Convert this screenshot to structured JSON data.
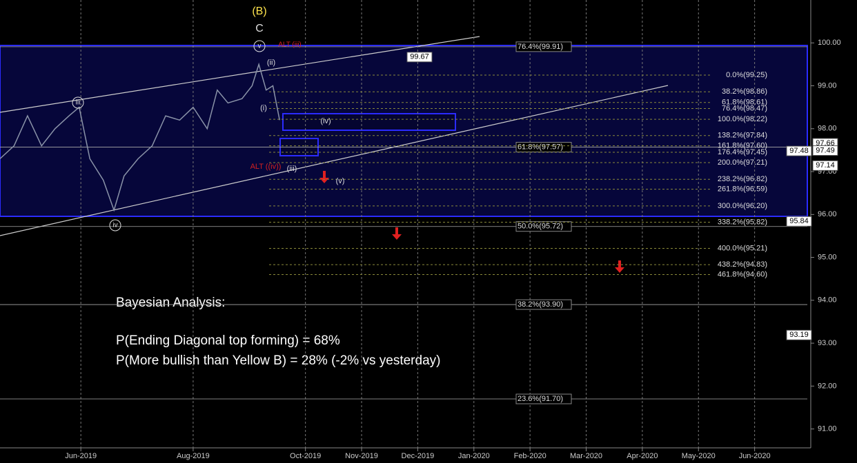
{
  "chart_data": {
    "type": "line",
    "color": "#8a93a8",
    "x": [
      4.56,
      4.81,
      5.05,
      5.3,
      5.54,
      5.79,
      5.97,
      6.16,
      6.4,
      6.59,
      6.77,
      7.02,
      7.27,
      7.51,
      7.76,
      8.0,
      8.25,
      8.43,
      8.62,
      8.87,
      9.05,
      9.17,
      9.3,
      9.42,
      9.54
    ],
    "values": [
      97.3,
      97.6,
      98.3,
      97.6,
      98.0,
      98.3,
      98.5,
      97.3,
      96.8,
      96.1,
      96.9,
      97.3,
      97.6,
      98.3,
      98.2,
      98.5,
      98.0,
      98.9,
      98.6,
      98.7,
      99.0,
      99.5,
      98.9,
      99.0,
      98.2
    ],
    "xlim": [
      4.56,
      19.0
    ],
    "xticks": [
      {
        "value": 6,
        "label": "Jun-2019"
      },
      {
        "value": 8,
        "label": "Aug-2019"
      },
      {
        "value": 10,
        "label": "Oct-2019"
      },
      {
        "value": 11,
        "label": "Nov-2019"
      },
      {
        "value": 12,
        "label": "Dec-2019"
      },
      {
        "value": 13,
        "label": "Jan-2020"
      },
      {
        "value": 14,
        "label": "Feb-2020"
      },
      {
        "value": 15,
        "label": "Mar-2020"
      },
      {
        "value": 16,
        "label": "Apr-2020"
      },
      {
        "value": 17,
        "label": "May-2020"
      },
      {
        "value": 18,
        "label": "Jun-2020"
      }
    ],
    "ylim": [
      90.56,
      101.0
    ],
    "yticks": [
      {
        "value": 100,
        "label": "100.00"
      },
      {
        "value": 99,
        "label": "99.00"
      },
      {
        "value": 98,
        "label": "98.00"
      },
      {
        "value": 97,
        "label": "97.00"
      },
      {
        "value": 96,
        "label": "96.00"
      },
      {
        "value": 95,
        "label": "95.00"
      },
      {
        "value": 94,
        "label": "94.00"
      },
      {
        "value": 93,
        "label": "93.00"
      },
      {
        "value": 92,
        "label": "92.00"
      },
      {
        "value": 91,
        "label": "91.00"
      }
    ],
    "grid": "x",
    "fib_levels_major": [
      {
        "label": "76.4%(99.91)",
        "value": 99.91
      },
      {
        "label": "61.8%(97.57)",
        "value": 97.57
      },
      {
        "label": "50.0%(95.72)",
        "value": 95.72
      },
      {
        "label": "38.2%(93.90)",
        "value": 93.9
      },
      {
        "label": "23.6%(91.70)",
        "value": 91.7
      }
    ],
    "fib_levels_minor": [
      {
        "label": "0.0%(99.25)",
        "value": 99.25
      },
      {
        "label": "38.2%(98.86)",
        "value": 98.86
      },
      {
        "label": "61.8%(98.61)",
        "value": 98.61
      },
      {
        "label": "76.4%(98.47)",
        "value": 98.47
      },
      {
        "label": "100.0%(98.22)",
        "value": 98.22
      },
      {
        "label": "138.2%(97.84)",
        "value": 97.84
      },
      {
        "label": "161.8%(97.60)",
        "value": 97.6
      },
      {
        "label": "176.4%(97.45)",
        "value": 97.45
      },
      {
        "label": "200.0%(97.21)",
        "value": 97.21
      },
      {
        "label": "238.2%(96.82)",
        "value": 96.82
      },
      {
        "label": "261.8%(96.59)",
        "value": 96.59
      },
      {
        "label": "300.0%(96.20)",
        "value": 96.2
      },
      {
        "label": "338.2%(95.82)",
        "value": 95.82
      },
      {
        "label": "400.0%(95.21)",
        "value": 95.21
      },
      {
        "label": "438.2%(94.83)",
        "value": 94.83
      },
      {
        "label": "461.8%(94.60)",
        "value": 94.6
      }
    ],
    "price_tags": [
      99.67,
      97.48,
      97.66,
      97.49,
      97.14,
      95.84,
      93.19
    ],
    "wave_labels": [
      "(B)",
      "C",
      "v",
      "ALT (iii)",
      "(ii)",
      "iii",
      "(i)",
      "(iv)",
      "ALT ((iv))",
      "(iii)",
      "(v)",
      "iv"
    ],
    "annotations": [
      "Bayesian Analysis:",
      "P(Ending Diagonal top forming) = 68%",
      "P(More bullish than Yellow B) = 28% (-2% vs yesterday)"
    ]
  }
}
